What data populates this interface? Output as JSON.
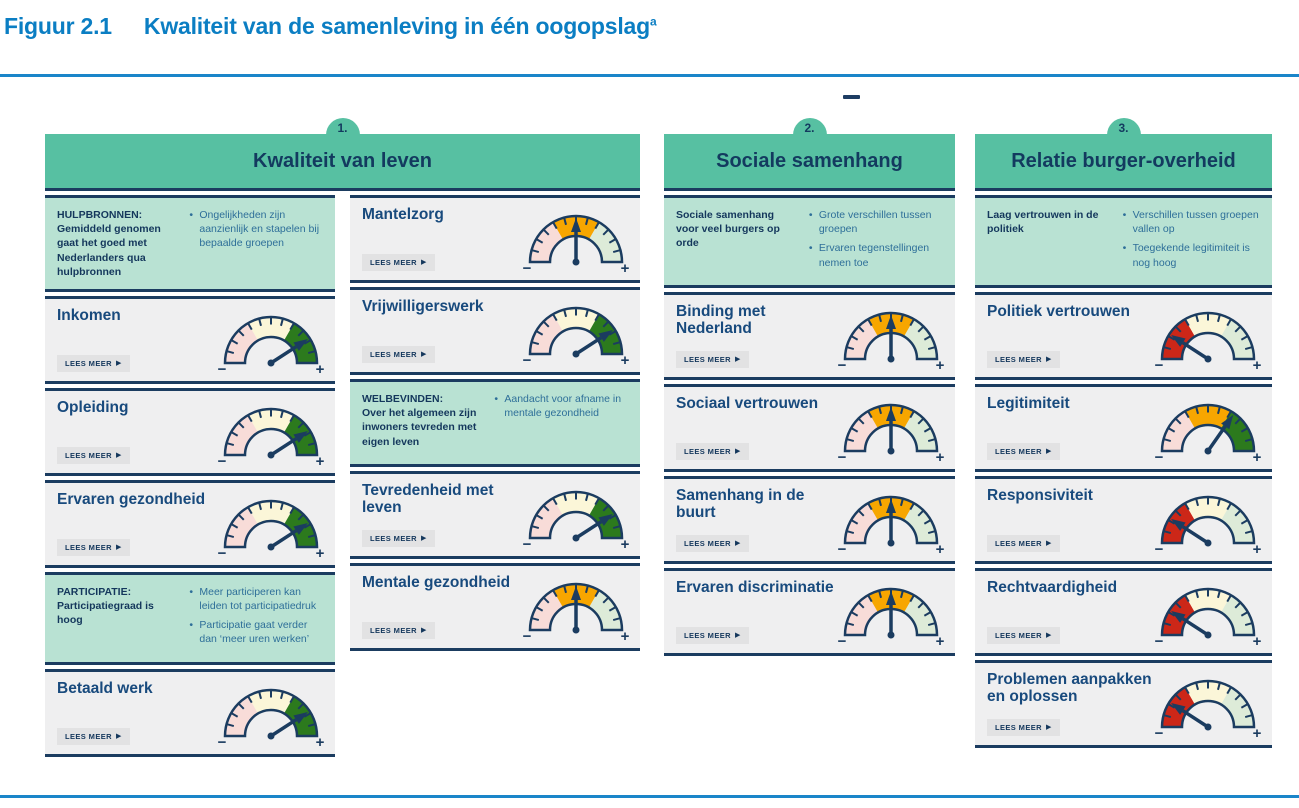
{
  "page": {
    "title_prefix": "Figuur 2.1",
    "title": "Kwaliteit van de samenleving in één oogopslag",
    "title_superscript": "a"
  },
  "ui": {
    "lees_meer": "LEES MEER",
    "play_icon": "▶",
    "minus": "−",
    "plus": "+"
  },
  "colors": {
    "title_blue": "#0b7ec3",
    "navy": "#1b3c60",
    "header_teal": "#57c0a2",
    "info_mint": "#b9e2d3",
    "card_grey": "#efeff0",
    "palePink": "#f8dcd8",
    "activeRed": "#cc2718",
    "paleCream": "#fbf6d8",
    "activeOrange": "#f7a600",
    "paleGreen": "#ddebd8",
    "activeGreen": "#2c7a1d"
  },
  "columns": [
    {
      "number": "1.",
      "title": "Kwaliteit van leven",
      "subcolumns": [
        [
          {
            "type": "info",
            "heading": "HULPBRONNEN:",
            "statement": "Gemiddeld genomen gaat het goed met Nederlanders qua hulpbronnen",
            "bullets": [
              "Ongelijkheden zijn aanzienlijk en stapelen bij bepaalde groepen"
            ]
          },
          {
            "type": "metric",
            "label": "Inkomen",
            "gauge": {
              "reading": "positief",
              "needle": "right",
              "needle_angle": 33,
              "segments": [
                "palePink",
                "paleCream",
                "activeGreen"
              ]
            }
          },
          {
            "type": "metric",
            "label": "Opleiding",
            "gauge": {
              "reading": "positief",
              "needle": "right",
              "needle_angle": 33,
              "segments": [
                "palePink",
                "paleCream",
                "activeGreen"
              ]
            }
          },
          {
            "type": "metric",
            "label": "Ervaren gezondheid",
            "gauge": {
              "reading": "positief",
              "needle": "right",
              "needle_angle": 33,
              "segments": [
                "palePink",
                "paleCream",
                "activeGreen"
              ]
            }
          },
          {
            "type": "info",
            "heading": "PARTICIPATIE:",
            "statement": "Participatiegraad is hoog",
            "bullets": [
              "Meer participeren kan leiden tot participatiedruk",
              "Participatie gaat verder dan ‘meer uren werken’"
            ]
          },
          {
            "type": "metric",
            "label": "Betaald werk",
            "gauge": {
              "reading": "positief",
              "needle": "right",
              "needle_angle": 33,
              "segments": [
                "palePink",
                "paleCream",
                "activeGreen"
              ]
            }
          }
        ],
        [
          {
            "type": "metric",
            "label": "Mantelzorg",
            "gauge": {
              "reading": "neutraal",
              "needle": "up",
              "needle_angle": 90,
              "segments": [
                "palePink",
                "activeOrange",
                "paleGreen"
              ]
            }
          },
          {
            "type": "metric",
            "label": "Vrijwilligerswerk",
            "gauge": {
              "reading": "positief",
              "needle": "right",
              "needle_angle": 33,
              "segments": [
                "palePink",
                "paleCream",
                "activeGreen"
              ]
            }
          },
          {
            "type": "info",
            "heading": "WELBEVINDEN:",
            "statement": "Over het algemeen zijn inwoners tevreden met eigen leven",
            "bullets": [
              "Aandacht voor afname in mentale gezondheid"
            ]
          },
          {
            "type": "metric",
            "label": "Tevredenheid met leven",
            "gauge": {
              "reading": "positief",
              "needle": "right",
              "needle_angle": 33,
              "segments": [
                "palePink",
                "paleCream",
                "activeGreen"
              ]
            }
          },
          {
            "type": "metric",
            "label": "Mentale gezondheid",
            "gauge": {
              "reading": "neutraal",
              "needle": "up",
              "needle_angle": 90,
              "segments": [
                "palePink",
                "activeOrange",
                "paleGreen"
              ]
            }
          }
        ]
      ]
    },
    {
      "number": "2.",
      "title": "Sociale samenhang",
      "subcolumns": [
        [
          {
            "type": "info",
            "heading": "",
            "statement": "Sociale samenhang voor veel burgers op orde",
            "bullets": [
              "Grote verschillen tussen groepen",
              "Ervaren tegenstellingen nemen toe"
            ]
          },
          {
            "type": "metric",
            "label": "Binding met Nederland",
            "gauge": {
              "reading": "neutraal",
              "needle": "up",
              "needle_angle": 90,
              "segments": [
                "palePink",
                "activeOrange",
                "paleGreen"
              ]
            }
          },
          {
            "type": "metric",
            "label": "Sociaal vertrouwen",
            "gauge": {
              "reading": "neutraal",
              "needle": "up",
              "needle_angle": 90,
              "segments": [
                "palePink",
                "activeOrange",
                "paleGreen"
              ]
            }
          },
          {
            "type": "metric",
            "label": "Samenhang in de buurt",
            "gauge": {
              "reading": "neutraal",
              "needle": "up",
              "needle_angle": 90,
              "segments": [
                "palePink",
                "activeOrange",
                "paleGreen"
              ]
            }
          },
          {
            "type": "metric",
            "label": "Ervaren discriminatie",
            "gauge": {
              "reading": "neutraal",
              "needle": "up",
              "needle_angle": 90,
              "segments": [
                "palePink",
                "activeOrange",
                "paleGreen"
              ]
            }
          }
        ]
      ]
    },
    {
      "number": "3.",
      "title": "Relatie burger-overheid",
      "subcolumns": [
        [
          {
            "type": "info",
            "heading": "",
            "statement": "Laag vertrouwen in de politiek",
            "bullets": [
              "Verschillen tussen groepen vallen op",
              "Toegekende legitimiteit is nog hoog"
            ]
          },
          {
            "type": "metric",
            "label": "Politiek vertrouwen",
            "gauge": {
              "reading": "negatief",
              "needle": "left",
              "needle_angle": 147,
              "segments": [
                "activeRed",
                "paleCream",
                "paleGreen"
              ]
            }
          },
          {
            "type": "metric",
            "label": "Legitimiteit",
            "gauge": {
              "reading": "neutraal-positief",
              "needle": "up-right",
              "needle_angle": 55,
              "segments": [
                "palePink",
                "activeOrange",
                "activeGreen"
              ]
            }
          },
          {
            "type": "metric",
            "label": "Responsiviteit",
            "gauge": {
              "reading": "negatief",
              "needle": "left",
              "needle_angle": 147,
              "segments": [
                "activeRed",
                "paleCream",
                "paleGreen"
              ]
            }
          },
          {
            "type": "metric",
            "label": "Rechtvaardigheid",
            "gauge": {
              "reading": "negatief",
              "needle": "left",
              "needle_angle": 147,
              "segments": [
                "activeRed",
                "paleCream",
                "paleGreen"
              ]
            }
          },
          {
            "type": "metric",
            "label": "Problemen aanpakken en oplossen",
            "gauge": {
              "reading": "negatief",
              "needle": "left",
              "needle_angle": 147,
              "segments": [
                "activeRed",
                "paleCream",
                "paleGreen"
              ]
            }
          }
        ]
      ]
    }
  ]
}
